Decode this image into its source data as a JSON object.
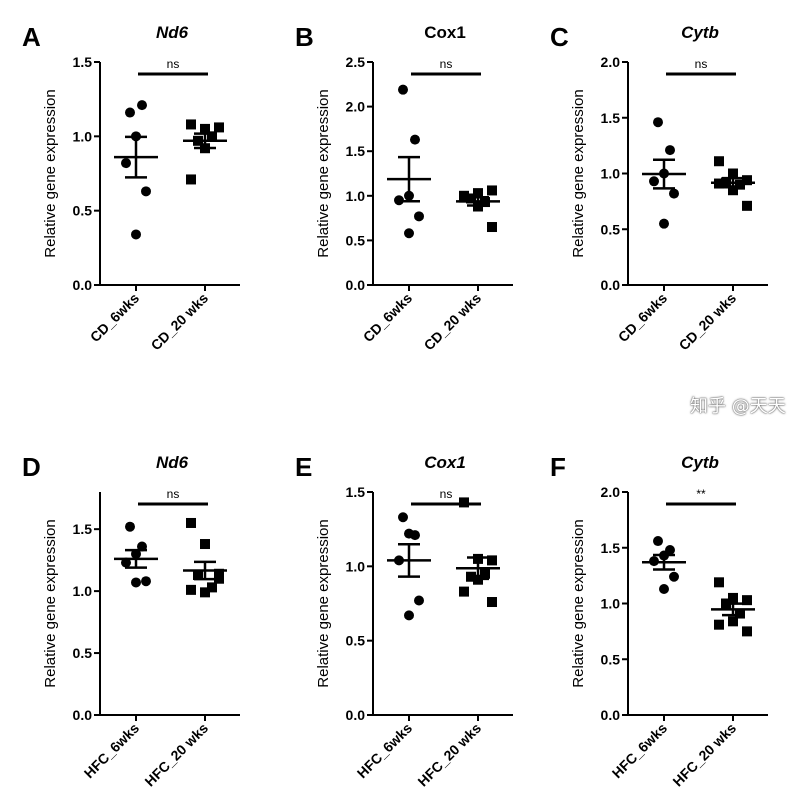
{
  "chart_data": [
    {
      "type": "scatter",
      "panel_letter": "A",
      "title": "Nd6",
      "title_italic": true,
      "ylabel": "Relative gene expression",
      "ylim": [
        0,
        1.5
      ],
      "yticks": [
        "0.0",
        "0.5",
        "1.0",
        "1.5"
      ],
      "categories": [
        "CD_6wks",
        "CD_20 wks"
      ],
      "significance": "ns",
      "series": [
        {
          "marker": "circle",
          "values": [
            1.16,
            1.21,
            1.0,
            0.82,
            0.63,
            0.34
          ]
        },
        {
          "marker": "square",
          "values": [
            1.08,
            1.05,
            1.06,
            0.97,
            1.0,
            0.92,
            0.71
          ]
        }
      ]
    },
    {
      "type": "scatter",
      "panel_letter": "B",
      "title": "Cox1",
      "title_italic": false,
      "ylabel": "Relative gene expression",
      "ylim": [
        0,
        2.5
      ],
      "yticks": [
        "0.0",
        "0.5",
        "1.0",
        "1.5",
        "2.0",
        "2.5"
      ],
      "categories": [
        "CD_6wks",
        "CD_20 wks"
      ],
      "significance": "ns",
      "series": [
        {
          "marker": "circle",
          "values": [
            2.19,
            1.63,
            1.0,
            0.95,
            0.77,
            0.58
          ]
        },
        {
          "marker": "square",
          "values": [
            1.0,
            1.03,
            1.06,
            0.97,
            0.93,
            0.88,
            0.98,
            0.65
          ]
        }
      ]
    },
    {
      "type": "scatter",
      "panel_letter": "C",
      "title": "Cytb",
      "title_italic": true,
      "ylabel": "Relative gene expression",
      "ylim": [
        0,
        2.0
      ],
      "yticks": [
        "0.0",
        "0.5",
        "1.0",
        "1.5",
        "2.0"
      ],
      "categories": [
        "CD_6wks",
        "CD_20 wks"
      ],
      "significance": "ns",
      "series": [
        {
          "marker": "circle",
          "values": [
            1.46,
            1.21,
            1.0,
            0.93,
            0.82,
            0.55
          ]
        },
        {
          "marker": "square",
          "values": [
            1.11,
            1.0,
            0.94,
            0.92,
            0.9,
            0.85,
            0.91,
            0.71
          ]
        }
      ]
    },
    {
      "type": "scatter",
      "panel_letter": "D",
      "title": "Nd6",
      "title_italic": true,
      "ylabel": "Relative gene expression",
      "ylim": [
        0,
        1.8
      ],
      "yticks": [
        "0.0",
        "0.5",
        "1.0",
        "1.5"
      ],
      "categories": [
        "HFC_6wks",
        "HFC_20 wks"
      ],
      "significance": "ns",
      "series": [
        {
          "marker": "circle",
          "values": [
            1.52,
            1.36,
            1.3,
            1.23,
            1.08,
            1.07
          ]
        },
        {
          "marker": "square",
          "values": [
            1.55,
            1.38,
            1.14,
            1.13,
            1.03,
            0.99,
            1.01,
            1.1
          ]
        }
      ]
    },
    {
      "type": "scatter",
      "panel_letter": "E",
      "title": "Cox1",
      "title_italic": true,
      "ylabel": "Relative gene expression",
      "ylim": [
        0,
        1.5
      ],
      "yticks": [
        "0.0",
        "0.5",
        "1.0",
        "1.5"
      ],
      "categories": [
        "HFC_6wks",
        "HFC_20 wks"
      ],
      "significance": "ns",
      "series": [
        {
          "marker": "circle",
          "values": [
            1.33,
            1.21,
            1.22,
            1.04,
            0.77,
            0.67
          ]
        },
        {
          "marker": "square",
          "values": [
            1.43,
            1.05,
            1.04,
            0.93,
            0.95,
            0.91,
            0.83,
            0.76
          ]
        }
      ]
    },
    {
      "type": "scatter",
      "panel_letter": "F",
      "title": "Cytb",
      "title_italic": true,
      "ylabel": "Relative gene expression",
      "ylim": [
        0,
        2.0
      ],
      "yticks": [
        "0.0",
        "0.5",
        "1.0",
        "1.5",
        "2.0"
      ],
      "categories": [
        "HFC_6wks",
        "HFC_20 wks"
      ],
      "significance": "**",
      "series": [
        {
          "marker": "circle",
          "values": [
            1.56,
            1.48,
            1.43,
            1.38,
            1.24,
            1.13
          ]
        },
        {
          "marker": "square",
          "values": [
            1.19,
            1.05,
            1.03,
            1.0,
            0.91,
            0.84,
            0.81,
            0.75
          ]
        }
      ]
    }
  ],
  "colors": {
    "ink": "#000000",
    "background": "#ffffff"
  },
  "watermark": "知乎 @天天"
}
